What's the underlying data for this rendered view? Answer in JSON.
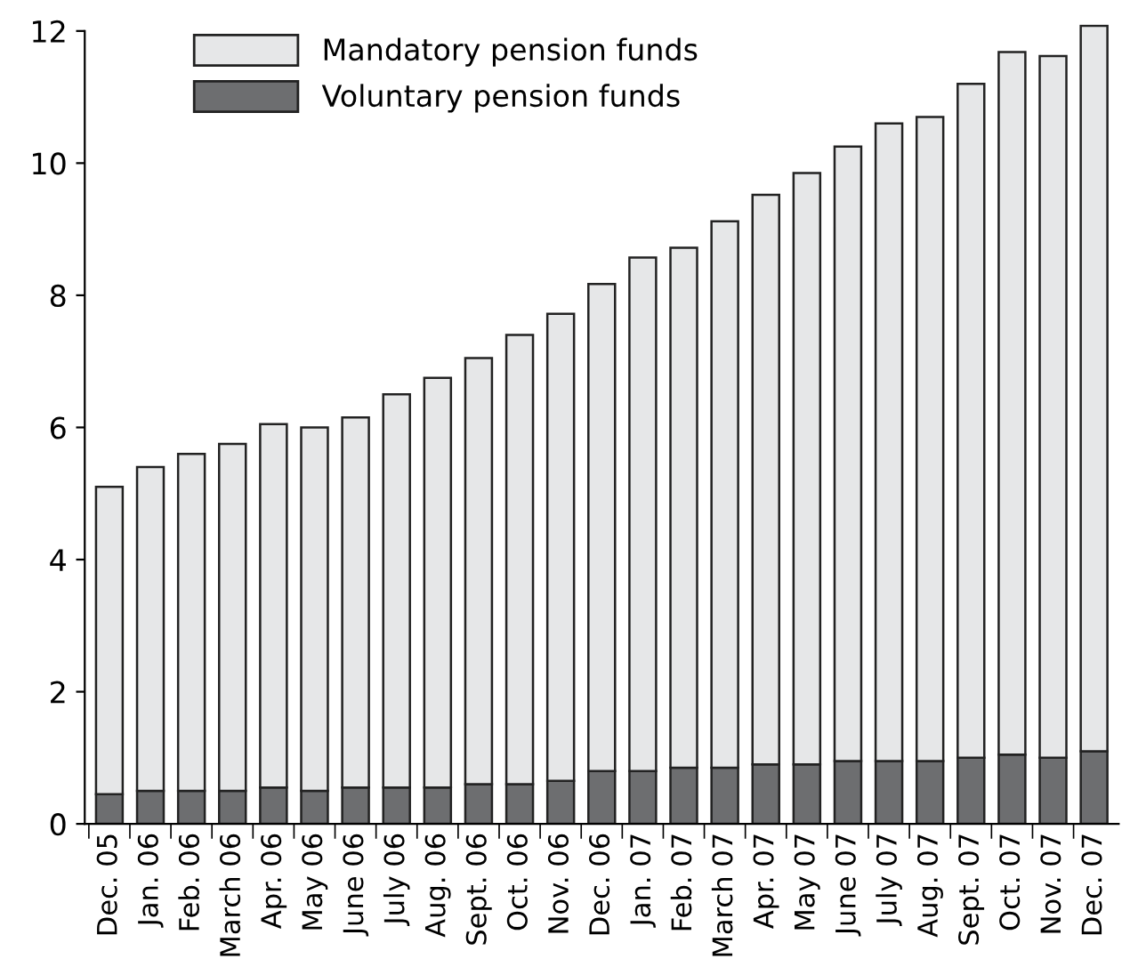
{
  "chart_data": {
    "type": "bar",
    "stacked": true,
    "legend": "top left",
    "grid": false,
    "categories": [
      "Dec. 05",
      "Jan. 06",
      "Feb. 06",
      "March 06",
      "Apr. 06",
      "May 06",
      "June 06",
      "July 06",
      "Aug. 06",
      "Sept. 06",
      "Oct. 06",
      "Nov. 06",
      "Dec. 06",
      "Jan. 07",
      "Feb. 07",
      "March 07",
      "Apr. 07",
      "May 07",
      "June 07",
      "July 07",
      "Aug. 07",
      "Sept. 07",
      "Oct. 07",
      "Nov. 07",
      "Dec. 07"
    ],
    "series": [
      {
        "name": "Voluntary pension funds",
        "color": "#6d6e70",
        "values": [
          0.45,
          0.5,
          0.5,
          0.5,
          0.55,
          0.5,
          0.55,
          0.55,
          0.55,
          0.6,
          0.6,
          0.65,
          0.8,
          0.8,
          0.85,
          0.85,
          0.9,
          0.9,
          0.95,
          0.95,
          0.95,
          1.0,
          1.05,
          1.0,
          1.1
        ]
      },
      {
        "name": "Mandatory pension funds",
        "color": "#e6e7e8",
        "values": [
          4.65,
          4.9,
          5.1,
          5.25,
          5.5,
          5.5,
          5.6,
          5.95,
          6.2,
          6.45,
          6.8,
          7.07,
          7.37,
          7.77,
          7.87,
          8.27,
          8.62,
          8.95,
          9.3,
          9.65,
          9.75,
          10.2,
          10.63,
          10.62,
          10.98
        ]
      }
    ],
    "ylim": [
      0,
      12.1
    ],
    "yticks": [
      0,
      2,
      4,
      6,
      8,
      10,
      12
    ]
  }
}
